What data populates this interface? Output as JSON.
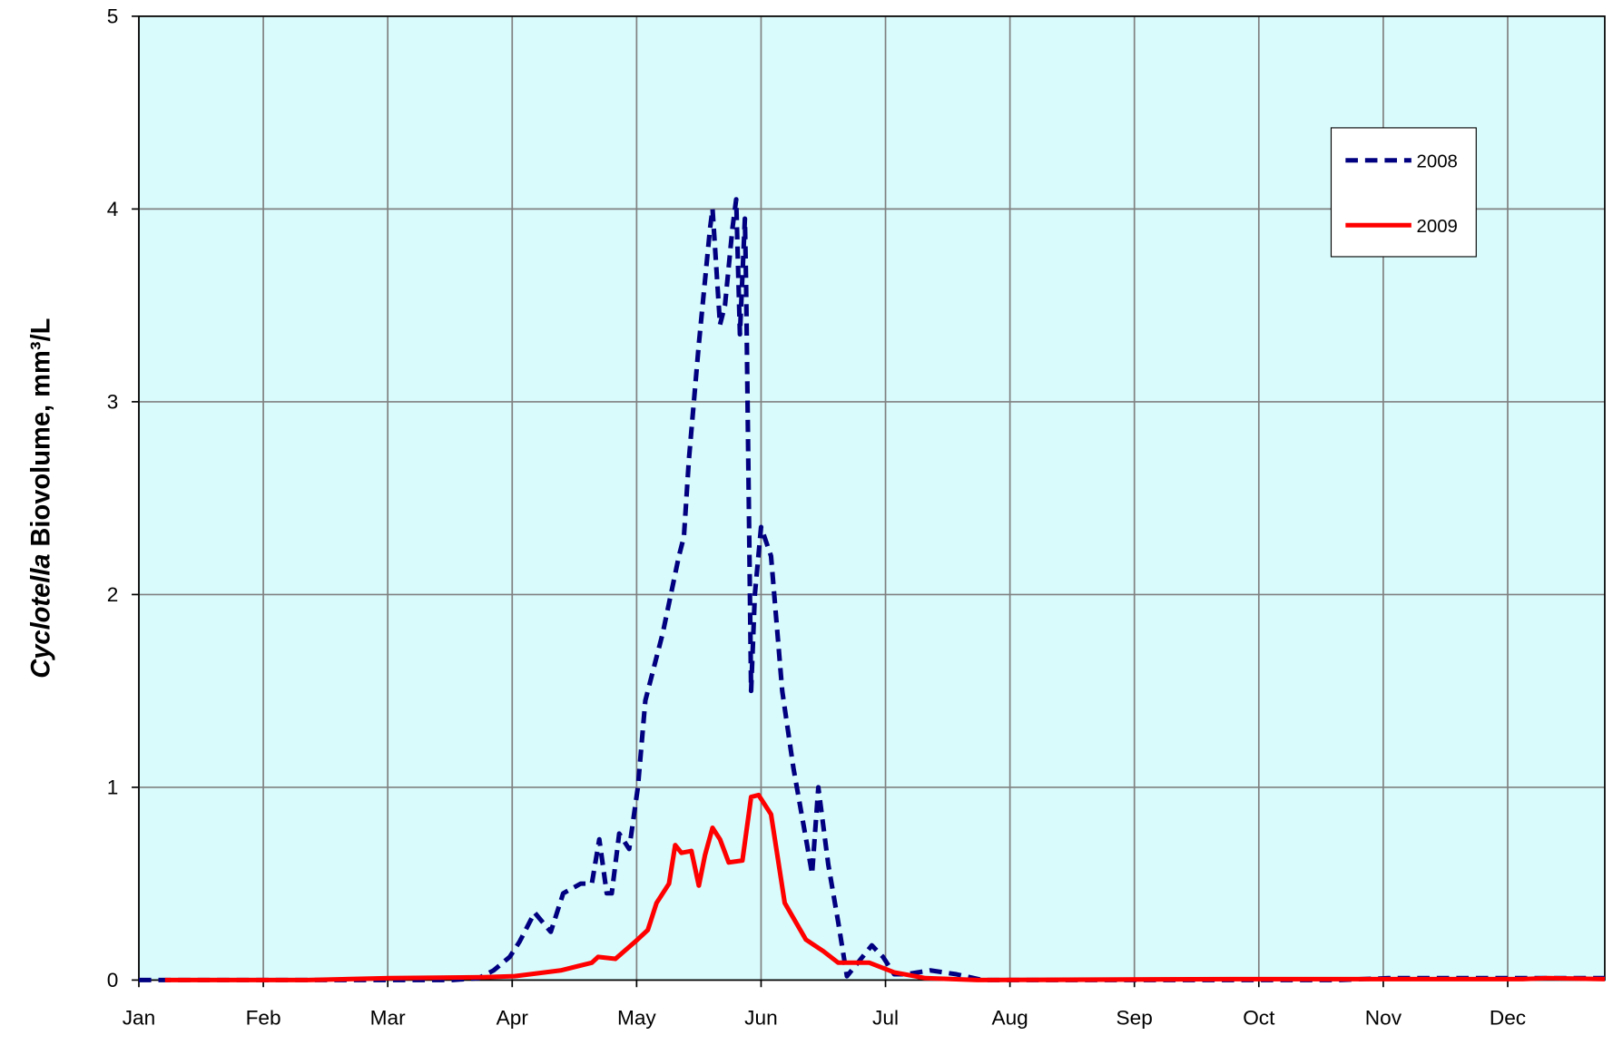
{
  "chart_data": {
    "type": "line",
    "ylabel": [
      "Cyclotella",
      "Biovolume, mm³/L"
    ],
    "xlim": [
      0,
      11.78
    ],
    "xticks": [
      {
        "value": 0,
        "label": "Jan"
      },
      {
        "value": 1,
        "label": "Feb"
      },
      {
        "value": 2,
        "label": "Mar"
      },
      {
        "value": 3,
        "label": "Apr"
      },
      {
        "value": 4,
        "label": "May"
      },
      {
        "value": 5,
        "label": "Jun"
      },
      {
        "value": 6,
        "label": "Jul"
      },
      {
        "value": 7,
        "label": "Aug"
      },
      {
        "value": 8,
        "label": "Sep"
      },
      {
        "value": 9,
        "label": "Oct"
      },
      {
        "value": 10,
        "label": "Nov"
      },
      {
        "value": 11,
        "label": "Dec"
      }
    ],
    "ylim": [
      0,
      5
    ],
    "yticks": [
      0,
      1,
      2,
      3,
      4,
      5
    ],
    "grid": true,
    "legend": "upper right",
    "series": [
      {
        "name": "2008",
        "color": "#000080",
        "dashed": true,
        "x": [
          0,
          0.54,
          1.36,
          2.19,
          2.52,
          2.73,
          2.85,
          2.98,
          3.06,
          3.18,
          3.31,
          3.41,
          3.55,
          3.64,
          3.7,
          3.76,
          3.8,
          3.86,
          3.94,
          4.01,
          4.07,
          4.13,
          4.21,
          4.34,
          4.38,
          4.42,
          4.5,
          4.59,
          4.61,
          4.67,
          4.71,
          4.77,
          4.8,
          4.83,
          4.87,
          4.88,
          4.92,
          4.95,
          5.0,
          5.08,
          5.17,
          5.26,
          5.37,
          5.41,
          5.46,
          5.54,
          5.62,
          5.69,
          5.79,
          5.89,
          5.98,
          6.07,
          6.16,
          6.36,
          6.57,
          6.78,
          7.15,
          7.98,
          8.8,
          9.63,
          10.04,
          10.45,
          10.87,
          11.28,
          11.78
        ],
        "values": [
          0,
          0,
          0,
          0,
          0,
          0.01,
          0.05,
          0.12,
          0.2,
          0.35,
          0.25,
          0.45,
          0.5,
          0.5,
          0.73,
          0.45,
          0.45,
          0.76,
          0.68,
          1.0,
          1.45,
          1.6,
          1.8,
          2.2,
          2.3,
          2.7,
          3.3,
          3.9,
          4.0,
          3.4,
          3.5,
          3.9,
          4.05,
          3.35,
          3.95,
          3.6,
          1.5,
          2.0,
          2.35,
          2.2,
          1.5,
          1.1,
          0.7,
          0.55,
          1.0,
          0.6,
          0.3,
          0.02,
          0.1,
          0.18,
          0.12,
          0.03,
          0.03,
          0.05,
          0.03,
          0,
          0,
          0,
          0,
          0,
          0.01,
          0.01,
          0.01,
          0.01,
          0.01
        ]
      },
      {
        "name": "2009",
        "color": "#ff0000",
        "dashed": false,
        "x": [
          0.21,
          1.36,
          2.02,
          2.77,
          3.02,
          3.39,
          3.64,
          3.69,
          3.83,
          3.99,
          4.09,
          4.16,
          4.26,
          4.31,
          4.36,
          4.44,
          4.5,
          4.55,
          4.61,
          4.67,
          4.74,
          4.85,
          4.92,
          4.98,
          5.08,
          5.19,
          5.36,
          5.5,
          5.62,
          5.87,
          6.07,
          6.32,
          6.74,
          8.8,
          11.12,
          11.32,
          11.78
        ],
        "values": [
          0,
          0,
          0.01,
          0.015,
          0.02,
          0.05,
          0.09,
          0.12,
          0.11,
          0.2,
          0.26,
          0.4,
          0.5,
          0.7,
          0.66,
          0.67,
          0.49,
          0.65,
          0.79,
          0.73,
          0.61,
          0.62,
          0.95,
          0.96,
          0.86,
          0.4,
          0.21,
          0.15,
          0.09,
          0.09,
          0.04,
          0.01,
          0,
          0.005,
          0.005,
          0.01,
          0.005
        ]
      }
    ]
  }
}
